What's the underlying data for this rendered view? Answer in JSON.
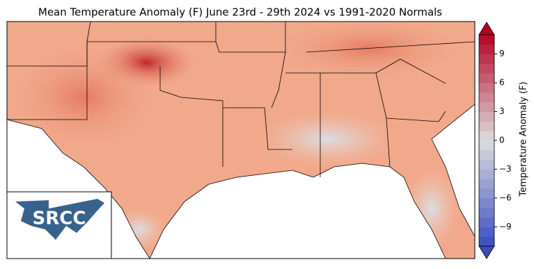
{
  "title": "Mean Temperature Anomaly (F) June 23rd - 29th 2024 vs 1991-2020 Normals",
  "colorbar": {
    "label": "Temperature Anomaly (F)",
    "lim": [
      -11,
      11
    ],
    "ticks": [
      9,
      6,
      3,
      0,
      {
        "value": -3,
        "label": "−3"
      },
      {
        "value": -6,
        "label": "−6"
      },
      {
        "value": -9,
        "label": "−9"
      }
    ]
  },
  "logo": "SRCC"
}
